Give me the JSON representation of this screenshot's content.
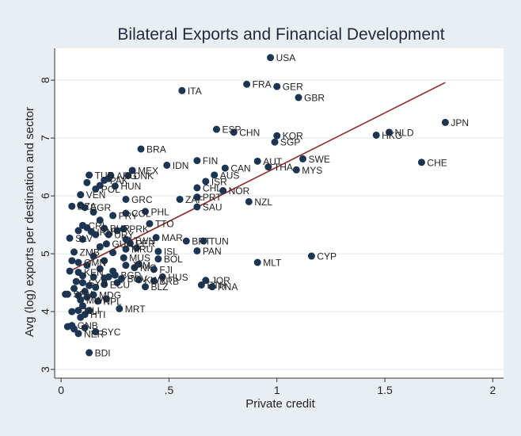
{
  "colors": {
    "frame_bg": "#e8eef2",
    "plot_bg": "#ffffff",
    "marker": "#1c3553",
    "fit_line": "#8a2a2a",
    "grid": "#dfe5ea"
  },
  "chart_data": {
    "type": "scatter",
    "title": "Bilateral Exports and Financial Development",
    "xlabel": "Private credit",
    "ylabel": "Avg (log) exports per destination and sector",
    "xlim": [
      -0.03,
      2.05
    ],
    "ylim": [
      2.85,
      8.55
    ],
    "xticks": [
      0,
      0.5,
      1,
      1.5,
      2
    ],
    "xtick_labels": [
      "0",
      ".5",
      "1",
      "1.5",
      "2"
    ],
    "yticks": [
      3,
      4,
      5,
      6,
      7,
      8
    ],
    "ytick_labels": [
      "3",
      "4",
      "5",
      "6",
      "7",
      "8"
    ],
    "grid": true,
    "fit_line": {
      "x": [
        0.03,
        1.78
      ],
      "y": [
        4.68,
        7.96
      ]
    },
    "labeled_points": [
      {
        "x": 0.97,
        "y": 8.39,
        "label": "USA"
      },
      {
        "x": 0.56,
        "y": 7.82,
        "label": "ITA"
      },
      {
        "x": 0.86,
        "y": 7.93,
        "label": "FRA"
      },
      {
        "x": 1.0,
        "y": 7.89,
        "label": "GER"
      },
      {
        "x": 1.1,
        "y": 7.7,
        "label": "GBR"
      },
      {
        "x": 0.72,
        "y": 7.15,
        "label": "ESP"
      },
      {
        "x": 0.8,
        "y": 7.1,
        "label": "CHN"
      },
      {
        "x": 1.0,
        "y": 7.04,
        "label": "KOR"
      },
      {
        "x": 0.99,
        "y": 6.93,
        "label": "SGP"
      },
      {
        "x": 1.78,
        "y": 7.27,
        "label": "JPN"
      },
      {
        "x": 1.52,
        "y": 7.1,
        "label": "NLD"
      },
      {
        "x": 1.46,
        "y": 7.05,
        "label": "HKG"
      },
      {
        "x": 1.67,
        "y": 6.58,
        "label": "CHE"
      },
      {
        "x": 0.37,
        "y": 6.81,
        "label": "BRA"
      },
      {
        "x": 0.63,
        "y": 6.61,
        "label": "FIN"
      },
      {
        "x": 0.49,
        "y": 6.53,
        "label": "IDN"
      },
      {
        "x": 0.91,
        "y": 6.6,
        "label": "AUT"
      },
      {
        "x": 1.12,
        "y": 6.64,
        "label": "SWE"
      },
      {
        "x": 0.96,
        "y": 6.5,
        "label": "THA"
      },
      {
        "x": 1.09,
        "y": 6.45,
        "label": "MYS"
      },
      {
        "x": 0.76,
        "y": 6.48,
        "label": "CAN"
      },
      {
        "x": 0.71,
        "y": 6.36,
        "label": "AUS"
      },
      {
        "x": 0.33,
        "y": 6.44,
        "label": "MEX"
      },
      {
        "x": 0.13,
        "y": 6.36,
        "label": "TUR"
      },
      {
        "x": 0.23,
        "y": 6.35,
        "label": "ARG"
      },
      {
        "x": 0.31,
        "y": 6.35,
        "label": "DNK"
      },
      {
        "x": 0.2,
        "y": 6.27,
        "label": "PAK"
      },
      {
        "x": 0.25,
        "y": 6.17,
        "label": "HUN"
      },
      {
        "x": 0.67,
        "y": 6.25,
        "label": "ISR"
      },
      {
        "x": 0.63,
        "y": 6.14,
        "label": "CHL"
      },
      {
        "x": 0.75,
        "y": 6.09,
        "label": "NOR"
      },
      {
        "x": 0.16,
        "y": 6.12,
        "label": "POL"
      },
      {
        "x": 0.09,
        "y": 6.02,
        "label": "VEN"
      },
      {
        "x": 0.3,
        "y": 5.94,
        "label": "GRC"
      },
      {
        "x": 0.55,
        "y": 5.94,
        "label": "ZAF"
      },
      {
        "x": 0.63,
        "y": 5.98,
        "label": "PRT"
      },
      {
        "x": 0.87,
        "y": 5.9,
        "label": "NZL"
      },
      {
        "x": 0.05,
        "y": 5.82,
        "label": "DZA"
      },
      {
        "x": 0.11,
        "y": 5.8,
        "label": "EGR"
      },
      {
        "x": 0.63,
        "y": 5.81,
        "label": "SAU"
      },
      {
        "x": 0.39,
        "y": 5.73,
        "label": "PHL"
      },
      {
        "x": 0.3,
        "y": 5.7,
        "label": "COL"
      },
      {
        "x": 0.24,
        "y": 5.66,
        "label": "PRY"
      },
      {
        "x": 0.41,
        "y": 5.52,
        "label": "TTO"
      },
      {
        "x": 0.1,
        "y": 5.49,
        "label": "CRI"
      },
      {
        "x": 0.2,
        "y": 5.44,
        "label": "BHR"
      },
      {
        "x": 0.29,
        "y": 5.43,
        "label": "PRK"
      },
      {
        "x": 0.14,
        "y": 5.38,
        "label": "IRN"
      },
      {
        "x": 0.22,
        "y": 5.33,
        "label": "URY"
      },
      {
        "x": 0.04,
        "y": 5.27,
        "label": "SLV"
      },
      {
        "x": 0.44,
        "y": 5.28,
        "label": "MAR"
      },
      {
        "x": 0.58,
        "y": 5.22,
        "label": "BRT"
      },
      {
        "x": 0.66,
        "y": 5.22,
        "label": "TUN"
      },
      {
        "x": 0.31,
        "y": 5.23,
        "label": "TWN"
      },
      {
        "x": 0.32,
        "y": 5.18,
        "label": "PER"
      },
      {
        "x": 0.21,
        "y": 5.17,
        "label": "GUA"
      },
      {
        "x": 0.3,
        "y": 5.08,
        "label": "MRU"
      },
      {
        "x": 0.45,
        "y": 5.04,
        "label": "ISL"
      },
      {
        "x": 0.63,
        "y": 5.05,
        "label": "PAN"
      },
      {
        "x": 0.06,
        "y": 5.03,
        "label": "ZMB"
      },
      {
        "x": 0.45,
        "y": 4.91,
        "label": "BOL"
      },
      {
        "x": 0.29,
        "y": 4.93,
        "label": "MUS"
      },
      {
        "x": 0.91,
        "y": 4.85,
        "label": "MLT"
      },
      {
        "x": 1.16,
        "y": 4.96,
        "label": "CYP"
      },
      {
        "x": 0.08,
        "y": 4.85,
        "label": "OMN"
      },
      {
        "x": 0.3,
        "y": 4.8,
        "label": "JAM"
      },
      {
        "x": 0.34,
        "y": 4.76,
        "label": "NIC"
      },
      {
        "x": 0.43,
        "y": 4.73,
        "label": "FJI"
      },
      {
        "x": 0.08,
        "y": 4.68,
        "label": "KEN"
      },
      {
        "x": 0.25,
        "y": 4.63,
        "label": "BGD"
      },
      {
        "x": 0.28,
        "y": 4.57,
        "label": "BOV"
      },
      {
        "x": 0.47,
        "y": 4.6,
        "label": "HUS"
      },
      {
        "x": 0.36,
        "y": 4.55,
        "label": "KWT"
      },
      {
        "x": 0.43,
        "y": 4.53,
        "label": "BRB"
      },
      {
        "x": 0.1,
        "y": 4.5,
        "label": "SYR"
      },
      {
        "x": 0.2,
        "y": 4.47,
        "label": "ECU"
      },
      {
        "x": 0.67,
        "y": 4.54,
        "label": "JOR"
      },
      {
        "x": 0.65,
        "y": 4.46,
        "label": "ETH"
      },
      {
        "x": 0.7,
        "y": 4.43,
        "label": "RNA"
      },
      {
        "x": 0.39,
        "y": 4.43,
        "label": "BLZ"
      },
      {
        "x": 0.03,
        "y": 4.3,
        "label": "SEN"
      },
      {
        "x": 0.15,
        "y": 4.29,
        "label": "MDG"
      },
      {
        "x": 0.09,
        "y": 4.2,
        "label": "MWI"
      },
      {
        "x": 0.17,
        "y": 4.18,
        "label": "NPL"
      },
      {
        "x": 0.27,
        "y": 4.05,
        "label": "MRT"
      },
      {
        "x": 0.08,
        "y": 4.02,
        "label": "MLI"
      },
      {
        "x": 0.11,
        "y": 3.95,
        "label": "HTI"
      },
      {
        "x": 0.05,
        "y": 3.76,
        "label": "GNB"
      },
      {
        "x": 0.16,
        "y": 3.65,
        "label": "SYC"
      },
      {
        "x": 0.08,
        "y": 3.62,
        "label": "NER"
      },
      {
        "x": 0.13,
        "y": 3.29,
        "label": "BDI"
      }
    ],
    "unlabeled_points": [
      {
        "x": 0.12,
        "y": 6.23
      },
      {
        "x": 0.18,
        "y": 6.18
      },
      {
        "x": 0.22,
        "y": 6.3
      },
      {
        "x": 0.09,
        "y": 5.84
      },
      {
        "x": 0.15,
        "y": 5.72
      },
      {
        "x": 0.18,
        "y": 5.58
      },
      {
        "x": 0.12,
        "y": 5.45
      },
      {
        "x": 0.08,
        "y": 5.4
      },
      {
        "x": 0.16,
        "y": 5.33
      },
      {
        "x": 0.26,
        "y": 5.4
      },
      {
        "x": 0.1,
        "y": 5.25
      },
      {
        "x": 0.18,
        "y": 5.12
      },
      {
        "x": 0.24,
        "y": 5.02
      },
      {
        "x": 0.15,
        "y": 4.96
      },
      {
        "x": 0.2,
        "y": 4.88
      },
      {
        "x": 0.05,
        "y": 4.88
      },
      {
        "x": 0.12,
        "y": 4.8
      },
      {
        "x": 0.18,
        "y": 4.74
      },
      {
        "x": 0.24,
        "y": 4.7
      },
      {
        "x": 0.04,
        "y": 4.7
      },
      {
        "x": 0.1,
        "y": 4.62
      },
      {
        "x": 0.15,
        "y": 4.6
      },
      {
        "x": 0.2,
        "y": 4.58
      },
      {
        "x": 0.07,
        "y": 4.52
      },
      {
        "x": 0.13,
        "y": 4.45
      },
      {
        "x": 0.26,
        "y": 4.5
      },
      {
        "x": 0.06,
        "y": 4.4
      },
      {
        "x": 0.11,
        "y": 4.35
      },
      {
        "x": 0.02,
        "y": 4.3
      },
      {
        "x": 0.08,
        "y": 4.28
      },
      {
        "x": 0.12,
        "y": 4.25
      },
      {
        "x": 0.1,
        "y": 4.1
      },
      {
        "x": 0.05,
        "y": 4.0
      },
      {
        "x": 0.13,
        "y": 4.02
      },
      {
        "x": 0.09,
        "y": 3.9
      },
      {
        "x": 0.03,
        "y": 3.74
      },
      {
        "x": 0.11,
        "y": 3.72
      },
      {
        "x": 0.06,
        "y": 3.7
      },
      {
        "x": 0.22,
        "y": 4.6
      },
      {
        "x": 0.36,
        "y": 4.82
      },
      {
        "x": 0.3,
        "y": 5.25
      },
      {
        "x": 0.35,
        "y": 5.1
      },
      {
        "x": 0.16,
        "y": 4.42
      },
      {
        "x": 0.21,
        "y": 4.22
      }
    ]
  }
}
